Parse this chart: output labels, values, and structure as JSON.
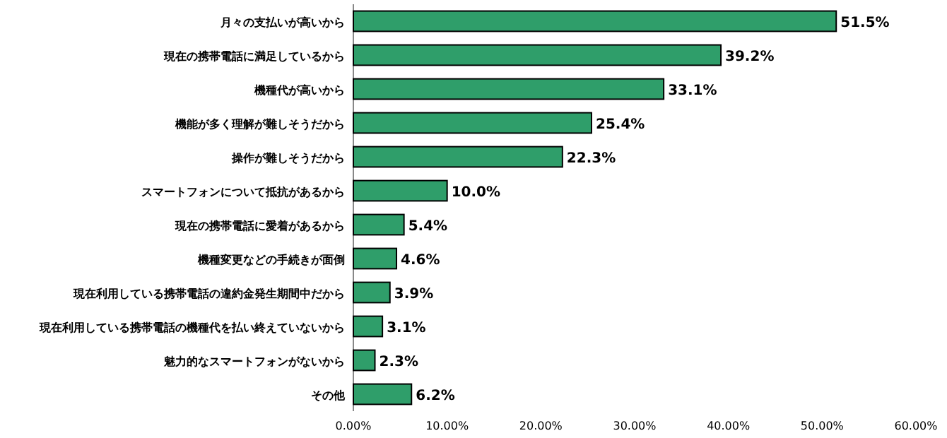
{
  "chart_data": {
    "type": "bar",
    "orientation": "horizontal",
    "categories": [
      "月々の支払いが高いから",
      "現在の携帯電話に満足しているから",
      "機種代が高いから",
      "機能が多く理解が難しそうだから",
      "操作が難しそうだから",
      "スマートフォンについて抵抗があるから",
      "現在の携帯電話に愛着があるから",
      "機種変更などの手続きが面倒",
      "現在利用している携帯電話の違約金発生期間中だから",
      "現在利用している携帯電話の機種代を払い終えていないから",
      "魅力的なスマートフォンがないから",
      "その他"
    ],
    "values": [
      51.5,
      39.2,
      33.1,
      25.4,
      22.3,
      10.0,
      5.4,
      4.6,
      3.9,
      3.1,
      2.3,
      6.2
    ],
    "value_labels": [
      "51.5%",
      "39.2%",
      "33.1%",
      "25.4%",
      "22.3%",
      "10.0%",
      "5.4%",
      "4.6%",
      "3.9%",
      "3.1%",
      "2.3%",
      "6.2%"
    ],
    "color": "#2f9e6a",
    "xlim": [
      0,
      60
    ],
    "xticks": [
      {
        "value": 0,
        "label": "0.00%"
      },
      {
        "value": 10,
        "label": "10.00%"
      },
      {
        "value": 20,
        "label": "20.00%"
      },
      {
        "value": 30,
        "label": "30.00%"
      },
      {
        "value": 40,
        "label": "40.00%"
      },
      {
        "value": 50,
        "label": "50.00%"
      },
      {
        "value": 60,
        "label": "60.00%"
      }
    ]
  }
}
